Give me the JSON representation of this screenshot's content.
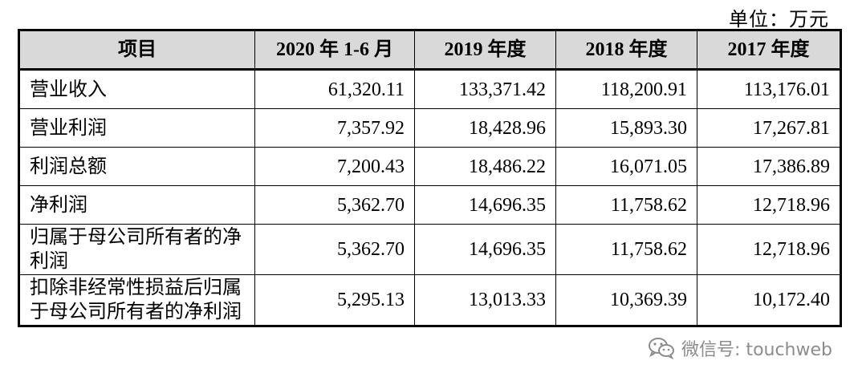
{
  "unit_label": "单位：万元",
  "table": {
    "headers": [
      "项目",
      "2020 年 1-6 月",
      "2019 年度",
      "2018 年度",
      "2017 年度"
    ],
    "rows": [
      {
        "label": "营业收入",
        "values": [
          "61,320.11",
          "133,371.42",
          "118,200.91",
          "113,176.01"
        ]
      },
      {
        "label": "营业利润",
        "values": [
          "7,357.92",
          "18,428.96",
          "15,893.30",
          "17,267.81"
        ]
      },
      {
        "label": "利润总额",
        "values": [
          "7,200.43",
          "18,486.22",
          "16,071.05",
          "17,386.89"
        ]
      },
      {
        "label": "净利润",
        "values": [
          "5,362.70",
          "14,696.35",
          "11,758.62",
          "12,718.96"
        ]
      },
      {
        "label": "归属于母公司所有者的净利润",
        "values": [
          "5,362.70",
          "14,696.35",
          "11,758.62",
          "12,718.96"
        ]
      },
      {
        "label": "扣除非经常性损益后归属于母公司所有者的净利润",
        "values": [
          "5,295.13",
          "13,013.33",
          "10,369.39",
          "10,172.40"
        ]
      }
    ]
  },
  "watermark": {
    "icon": "wechat-icon",
    "text": "微信号: touchweb"
  }
}
